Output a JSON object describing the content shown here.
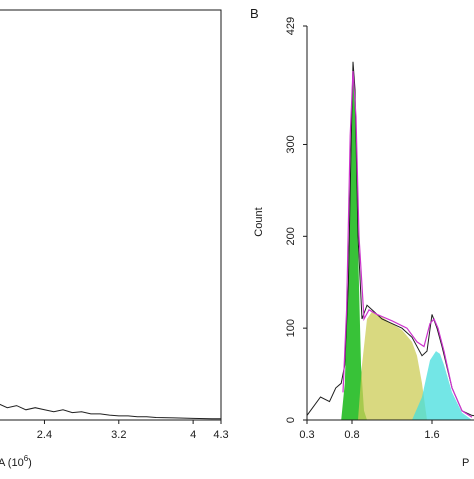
{
  "panel_a": {
    "xlabel_text": "A (10",
    "xlabel_exp": "6",
    "xlabel_close": ")"
  },
  "panel_b": {
    "letter": "B",
    "ylabel": "Count",
    "xlabel_partial": "P"
  },
  "chart_data": [
    {
      "type": "line",
      "panel": "A",
      "xlabel": "A (10^6)",
      "x_ticks": [
        2.4,
        3.2,
        4,
        4.3
      ],
      "x_tick_labels": [
        "2.4",
        "3.2",
        "4",
        "4.3"
      ],
      "xlim": [
        1.9,
        4.3
      ],
      "ylim": [
        0,
        100
      ],
      "series": [
        {
          "color": "#202020",
          "x": [
            1.9,
            2.0,
            2.1,
            2.2,
            2.3,
            2.4,
            2.5,
            2.6,
            2.7,
            2.8,
            2.9,
            3.0,
            3.1,
            3.2,
            3.3,
            3.4,
            3.5,
            3.6,
            3.8,
            4.0,
            4.2,
            4.3
          ],
          "y": [
            4,
            3,
            3.5,
            2.5,
            3,
            2.5,
            2,
            2.5,
            1.8,
            2,
            1.5,
            1.5,
            1.2,
            1,
            1,
            0.8,
            0.8,
            0.6,
            0.5,
            0.4,
            0.3,
            0.3
          ]
        }
      ]
    },
    {
      "type": "area",
      "panel": "B",
      "ylabel": "Count",
      "x_ticks": [
        0.3,
        0.8,
        1.6
      ],
      "x_tick_labels": [
        "0.3",
        "0.8",
        "1.6"
      ],
      "y_ticks": [
        0,
        100,
        200,
        300,
        429
      ],
      "y_tick_labels": [
        "0",
        "100",
        "200",
        "300",
        "429"
      ],
      "xlim": [
        0.3,
        2.2
      ],
      "ylim": [
        0,
        429
      ],
      "series": [
        {
          "color": "#1f1f1f",
          "x": [
            0.3,
            0.45,
            0.55,
            0.62,
            0.68,
            0.72,
            0.76,
            0.79,
            0.81,
            0.83,
            0.86,
            0.9,
            0.95,
            1.0,
            1.05,
            1.1,
            1.2,
            1.3,
            1.4,
            1.5,
            1.55,
            1.6,
            1.65,
            1.7,
            1.8,
            1.9,
            2.0,
            2.2
          ],
          "y": [
            5,
            25,
            20,
            35,
            40,
            60,
            150,
            300,
            390,
            360,
            200,
            110,
            125,
            120,
            115,
            110,
            105,
            100,
            90,
            70,
            75,
            115,
            100,
            80,
            35,
            10,
            5,
            2
          ]
        },
        {
          "color": "#cc33cc",
          "x": [
            0.7,
            0.74,
            0.78,
            0.81,
            0.84,
            0.87,
            0.92,
            0.97,
            1.05,
            1.2,
            1.35,
            1.45,
            1.52,
            1.58,
            1.62,
            1.66,
            1.72,
            1.8,
            1.9,
            2.0
          ],
          "y": [
            30,
            120,
            310,
            380,
            330,
            200,
            110,
            120,
            115,
            108,
            100,
            85,
            80,
            105,
            110,
            100,
            75,
            35,
            10,
            3
          ]
        },
        {
          "color": "#22bb22",
          "x": [
            0.68,
            0.72,
            0.76,
            0.79,
            0.81,
            0.83,
            0.86,
            0.89,
            0.92,
            0.95
          ],
          "y": [
            0,
            40,
            160,
            320,
            390,
            340,
            190,
            60,
            10,
            0
          ]
        },
        {
          "color": "#cccc55",
          "x": [
            0.86,
            0.9,
            0.95,
            1.0,
            1.1,
            1.2,
            1.3,
            1.4,
            1.45,
            1.5,
            1.55
          ],
          "y": [
            0,
            60,
            110,
            118,
            112,
            105,
            98,
            85,
            70,
            40,
            0
          ]
        },
        {
          "color": "#44dddd",
          "x": [
            1.4,
            1.5,
            1.58,
            1.64,
            1.68,
            1.72,
            1.8,
            1.9,
            2.0
          ],
          "y": [
            0,
            25,
            65,
            75,
            72,
            60,
            30,
            8,
            0
          ]
        }
      ]
    }
  ]
}
